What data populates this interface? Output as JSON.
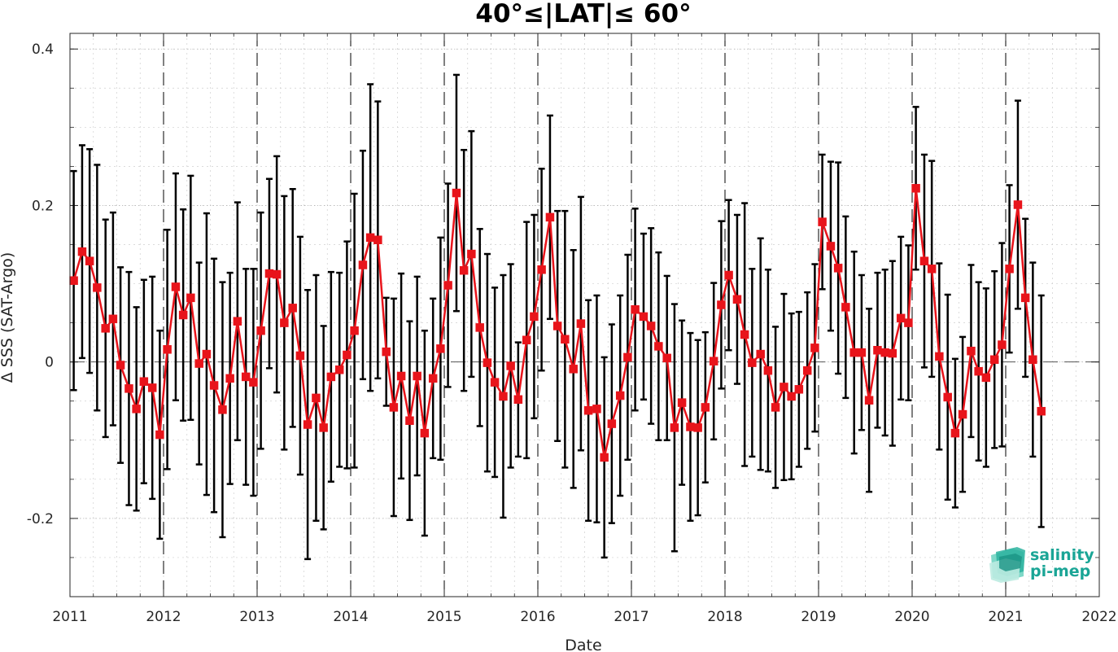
{
  "chart_data": {
    "type": "line",
    "title": "40°≤|LAT|≤ 60°",
    "xlabel": "Date",
    "ylabel": "Δ SSS (SAT-Argo)",
    "xlim": [
      2011,
      2022
    ],
    "ylim": [
      -0.3,
      0.42
    ],
    "x_ticks": [
      "2011",
      "2012",
      "2013",
      "2014",
      "2015",
      "2016",
      "2017",
      "2018",
      "2019",
      "2020",
      "2021",
      "2022"
    ],
    "y_ticks": [
      "-0.2",
      "0",
      "0.2",
      "0.4"
    ],
    "grid": true,
    "minor_grid": true,
    "year_dividers": true,
    "zero_line": true,
    "series": [
      {
        "marker": "square",
        "color": "#e8141b",
        "errorbar_color": "#000000",
        "x": [
          2011.04,
          2011.13,
          2011.21,
          2011.29,
          2011.38,
          2011.46,
          2011.54,
          2011.63,
          2011.71,
          2011.79,
          2011.88,
          2011.96,
          2012.04,
          2012.13,
          2012.21,
          2012.29,
          2012.38,
          2012.46,
          2012.54,
          2012.63,
          2012.71,
          2012.79,
          2012.88,
          2012.96,
          2013.04,
          2013.13,
          2013.21,
          2013.29,
          2013.38,
          2013.46,
          2013.54,
          2013.63,
          2013.71,
          2013.79,
          2013.88,
          2013.96,
          2014.04,
          2014.13,
          2014.21,
          2014.29,
          2014.38,
          2014.46,
          2014.54,
          2014.63,
          2014.71,
          2014.79,
          2014.88,
          2014.96,
          2015.04,
          2015.13,
          2015.21,
          2015.29,
          2015.38,
          2015.46,
          2015.54,
          2015.63,
          2015.71,
          2015.79,
          2015.88,
          2015.96,
          2016.04,
          2016.13,
          2016.21,
          2016.29,
          2016.38,
          2016.46,
          2016.54,
          2016.63,
          2016.71,
          2016.79,
          2016.88,
          2016.96,
          2017.04,
          2017.13,
          2017.21,
          2017.29,
          2017.38,
          2017.46,
          2017.54,
          2017.63,
          2017.71,
          2017.79,
          2017.88,
          2017.96,
          2018.04,
          2018.13,
          2018.21,
          2018.29,
          2018.38,
          2018.46,
          2018.54,
          2018.63,
          2018.71,
          2018.79,
          2018.88,
          2018.96,
          2019.04,
          2019.13,
          2019.21,
          2019.29,
          2019.38,
          2019.46,
          2019.54,
          2019.63,
          2019.71,
          2019.79,
          2019.88,
          2019.96,
          2020.04,
          2020.13,
          2020.21,
          2020.29,
          2020.38,
          2020.46,
          2020.54,
          2020.63,
          2020.71,
          2020.79,
          2020.88,
          2020.96,
          2021.04,
          2021.13,
          2021.21,
          2021.29,
          2021.38
        ],
        "y": [
          0.104,
          0.141,
          0.129,
          0.095,
          0.043,
          0.055,
          -0.004,
          -0.034,
          -0.06,
          -0.025,
          -0.033,
          -0.093,
          0.016,
          0.096,
          0.06,
          0.082,
          -0.002,
          0.01,
          -0.03,
          -0.061,
          -0.021,
          0.052,
          -0.019,
          -0.026,
          0.04,
          0.113,
          0.112,
          0.05,
          0.069,
          0.008,
          -0.08,
          -0.046,
          -0.084,
          -0.019,
          -0.01,
          0.009,
          0.04,
          0.124,
          0.159,
          0.156,
          0.013,
          -0.058,
          -0.018,
          -0.075,
          -0.018,
          -0.091,
          -0.021,
          0.017,
          0.098,
          0.216,
          0.117,
          0.138,
          0.044,
          -0.001,
          -0.026,
          -0.044,
          -0.005,
          -0.048,
          0.028,
          0.058,
          0.118,
          0.185,
          0.046,
          0.029,
          -0.009,
          0.049,
          -0.062,
          -0.06,
          -0.122,
          -0.079,
          -0.043,
          0.006,
          0.067,
          0.058,
          0.046,
          0.02,
          0.005,
          -0.084,
          -0.052,
          -0.083,
          -0.084,
          -0.058,
          0.001,
          0.073,
          0.111,
          0.08,
          0.035,
          -0.001,
          0.01,
          -0.011,
          -0.058,
          -0.032,
          -0.044,
          -0.035,
          -0.011,
          0.018,
          0.179,
          0.148,
          0.12,
          0.07,
          0.012,
          0.012,
          -0.049,
          0.015,
          0.012,
          0.011,
          0.056,
          0.05,
          0.222,
          0.129,
          0.119,
          0.007,
          -0.045,
          -0.091,
          -0.067,
          0.014,
          -0.012,
          -0.02,
          0.003,
          0.022,
          0.119,
          0.201,
          0.082,
          0.003,
          -0.063
        ],
        "err": [
          0.14,
          0.136,
          0.143,
          0.157,
          0.139,
          0.136,
          0.125,
          0.149,
          0.13,
          0.13,
          0.142,
          0.133,
          0.153,
          0.145,
          0.135,
          0.156,
          0.129,
          0.18,
          0.162,
          0.163,
          0.135,
          0.152,
          0.138,
          0.145,
          0.151,
          0.121,
          0.151,
          0.162,
          0.152,
          0.152,
          0.172,
          0.157,
          0.13,
          0.134,
          0.124,
          0.145,
          0.175,
          0.146,
          0.196,
          0.177,
          0.069,
          0.139,
          0.131,
          0.127,
          0.127,
          0.131,
          0.102,
          0.142,
          0.13,
          0.151,
          0.154,
          0.157,
          0.126,
          0.139,
          0.121,
          0.155,
          0.13,
          0.073,
          0.151,
          0.13,
          0.129,
          0.13,
          0.147,
          0.164,
          0.152,
          0.162,
          0.141,
          0.145,
          0.128,
          0.127,
          0.128,
          0.131,
          0.129,
          0.106,
          0.125,
          0.12,
          0.105,
          0.158,
          0.105,
          0.12,
          0.112,
          0.096,
          0.1,
          0.107,
          0.096,
          0.108,
          0.168,
          0.12,
          0.148,
          0.129,
          0.103,
          0.119,
          0.106,
          0.099,
          0.1,
          0.107,
          0.086,
          0.108,
          0.135,
          0.116,
          0.129,
          0.099,
          0.117,
          0.099,
          0.106,
          0.118,
          0.104,
          0.099,
          0.104,
          0.136,
          0.138,
          0.119,
          0.131,
          0.095,
          0.099,
          0.11,
          0.114,
          0.114,
          0.113,
          0.13,
          0.107,
          0.133,
          0.101,
          0.124,
          0.148
        ]
      }
    ]
  },
  "logo": {
    "line1": "salinity",
    "line2": "pi-mep"
  }
}
